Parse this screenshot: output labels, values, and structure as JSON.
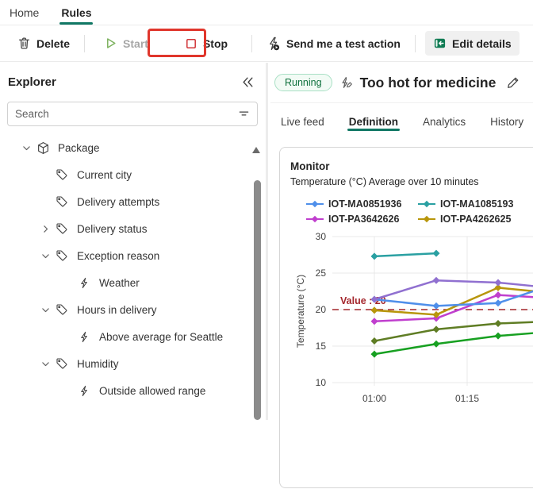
{
  "colors": {
    "accent_teal": "#117865",
    "annotation_red": "#e0362c",
    "stop_icon_red": "#d13438",
    "start_icon_green": "#62ab45",
    "edit_icon_green": "#0f7b53",
    "running_text_green": "#0e703c",
    "threshold_red": "#a4262c"
  },
  "nav": {
    "tabs": [
      {
        "label": "Home"
      },
      {
        "label": "Rules"
      }
    ]
  },
  "toolbar": {
    "delete_label": "Delete",
    "start_label": "Start",
    "stop_label": "Stop",
    "test_action_label": "Send me a test action",
    "edit_details_label": "Edit details"
  },
  "explorer": {
    "title": "Explorer",
    "search_placeholder": "Search",
    "tree": [
      {
        "label": "Package",
        "level": 0,
        "expander": "down",
        "icon": "package"
      },
      {
        "label": "Current city",
        "level": 1,
        "expander": "none",
        "icon": "tag"
      },
      {
        "label": "Delivery attempts",
        "level": 1,
        "expander": "none",
        "icon": "tag"
      },
      {
        "label": "Delivery status",
        "level": 1,
        "expander": "right",
        "icon": "tag"
      },
      {
        "label": "Exception reason",
        "level": 1,
        "expander": "down",
        "icon": "tag"
      },
      {
        "label": "Weather",
        "level": 2,
        "expander": "none",
        "icon": "rule"
      },
      {
        "label": "Hours in delivery",
        "level": 1,
        "expander": "down",
        "icon": "tag"
      },
      {
        "label": "Above average for Seattle",
        "level": 2,
        "expander": "none",
        "icon": "rule"
      },
      {
        "label": "Humidity",
        "level": 1,
        "expander": "down",
        "icon": "tag"
      },
      {
        "label": "Outside allowed range",
        "level": 2,
        "expander": "none",
        "icon": "rule"
      }
    ]
  },
  "rule": {
    "status": "Running",
    "title": "Too hot for medicine"
  },
  "view_tabs": [
    {
      "label": "Live feed",
      "active": false
    },
    {
      "label": "Definition",
      "active": true
    },
    {
      "label": "Analytics",
      "active": false
    },
    {
      "label": "History",
      "active": false
    }
  ],
  "monitor": {
    "title": "Monitor",
    "subtitle": "Temperature (°C) Average over 10 minutes"
  },
  "chart_data": {
    "type": "line",
    "title": "Monitor",
    "subtitle": "Temperature (°C) Average over 10 minutes",
    "ylabel": "Temperature (°C)",
    "ylim": [
      10,
      30
    ],
    "yticks": [
      30,
      25,
      20,
      15,
      10
    ],
    "xticks": [
      {
        "label": "01:00",
        "minute": 60
      },
      {
        "label": "01:15",
        "minute": 75
      }
    ],
    "grid": true,
    "legend_position": "top",
    "threshold": {
      "label": "Value : 20",
      "value": 20
    },
    "legend_visible": [
      {
        "label": "IOT-MA0851936",
        "color": "#4f8fea"
      },
      {
        "label": "IOT-MA1085193",
        "color": "#2aa0a2"
      },
      {
        "label": "IOT-PA3642626",
        "color": "#c03fce"
      },
      {
        "label": "IOT-PA4262625",
        "color": "#b8960b"
      }
    ],
    "series": [
      {
        "name": "IOT-MA1085193",
        "color": "#2aa0a2",
        "x_minutes": [
          60,
          70
        ],
        "values": [
          27.3,
          27.7
        ],
        "clipped_last": false
      },
      {
        "name": "unlabeled-green",
        "color": "#17a021",
        "x_minutes": [
          60,
          70,
          80,
          86
        ],
        "values": [
          13.9,
          15.3,
          16.4,
          16.8
        ],
        "clipped_last": true
      },
      {
        "name": "unlabeled-olive",
        "color": "#5f7d24",
        "x_minutes": [
          60,
          70,
          80,
          86
        ],
        "values": [
          15.7,
          17.3,
          18.1,
          18.3
        ],
        "clipped_last": true
      },
      {
        "name": "IOT-PA3642626",
        "color": "#c03fce",
        "x_minutes": [
          60,
          70,
          80,
          86
        ],
        "values": [
          18.4,
          18.8,
          22.0,
          21.7
        ],
        "clipped_last": true
      },
      {
        "name": "IOT-PA4262625",
        "color": "#b8960b",
        "x_minutes": [
          60,
          70,
          80,
          86
        ],
        "values": [
          19.9,
          19.3,
          23.0,
          22.5
        ],
        "clipped_last": true
      },
      {
        "name": "IOT-MA0851936",
        "color": "#4f8fea",
        "x_minutes": [
          60,
          70,
          80,
          86
        ],
        "values": [
          21.4,
          20.5,
          20.9,
          22.6
        ],
        "clipped_last": true
      },
      {
        "name": "unlabeled-violet",
        "color": "#9070d0",
        "x_minutes": [
          60,
          70,
          80,
          86
        ],
        "values": [
          21.4,
          24.0,
          23.7,
          23.2
        ],
        "clipped_last": true
      }
    ]
  }
}
